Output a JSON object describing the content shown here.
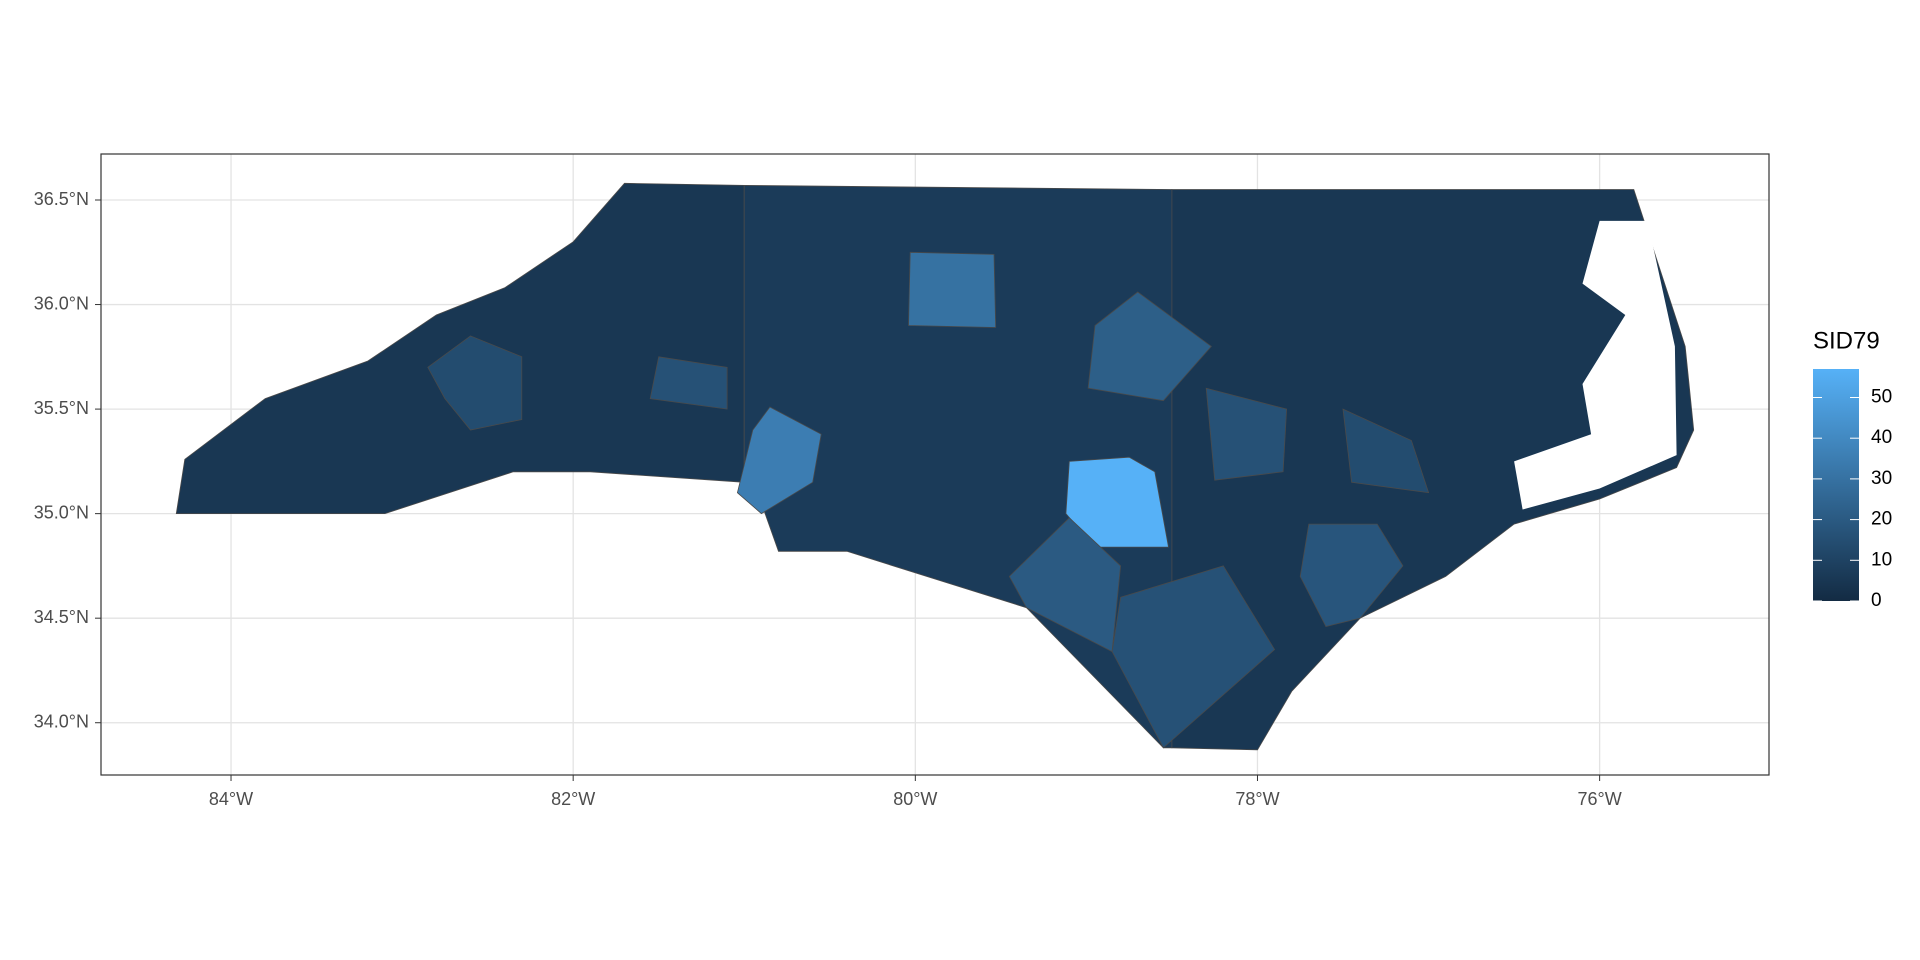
{
  "chart_data": {
    "type": "choropleth",
    "legend_title": "SID79",
    "xlim": [
      -84.76,
      -75.01
    ],
    "ylim": [
      33.75,
      36.72
    ],
    "xticks": [
      {
        "value": -84,
        "label": "84°W"
      },
      {
        "value": -82,
        "label": "82°W"
      },
      {
        "value": -80,
        "label": "80°W"
      },
      {
        "value": -78,
        "label": "78°W"
      },
      {
        "value": -76,
        "label": "76°W"
      }
    ],
    "yticks": [
      {
        "value": 34,
        "label": "34.0°N"
      },
      {
        "value": 34.5,
        "label": "34.5°N"
      },
      {
        "value": 35,
        "label": "35.0°N"
      },
      {
        "value": 35.5,
        "label": "35.5°N"
      },
      {
        "value": 36,
        "label": "36.0°N"
      },
      {
        "value": 36.5,
        "label": "36.5°N"
      }
    ],
    "values": [
      5,
      7,
      5,
      30,
      57,
      35,
      22,
      20,
      16,
      18,
      16,
      16,
      14,
      14
    ],
    "color_scale": {
      "low": "#132B43",
      "high": "#56B1F7",
      "limits": [
        0,
        57
      ],
      "ticks": [
        0,
        10,
        20,
        30,
        40,
        50
      ]
    },
    "grid": true
  }
}
